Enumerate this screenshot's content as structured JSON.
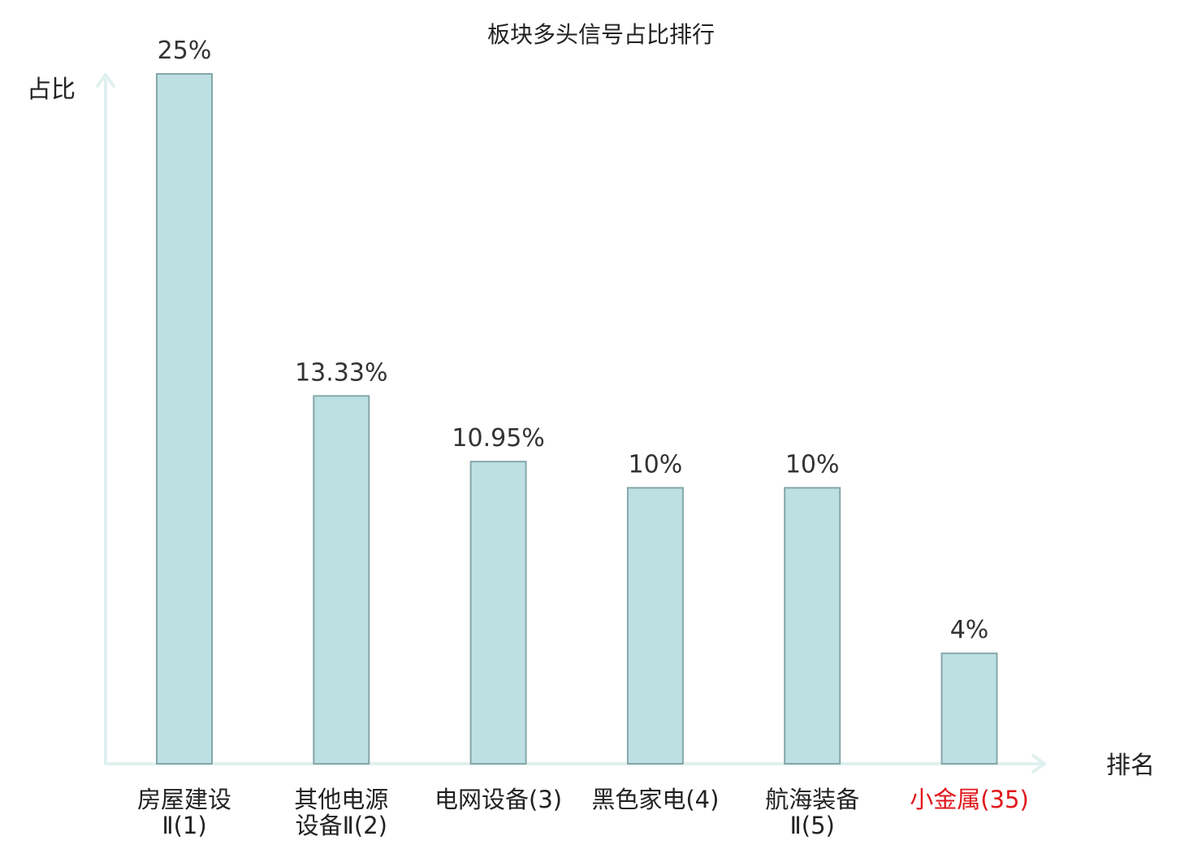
{
  "chart_data": {
    "type": "bar",
    "title": "板块多头信号占比排行",
    "ylabel": "占比",
    "xlabel": "排名",
    "categories": [
      [
        "房屋建设",
        "Ⅱ(1)"
      ],
      [
        "其他电源",
        "设备Ⅱ(2)"
      ],
      [
        "电网设备(3)"
      ],
      [
        "黑色家电(4)"
      ],
      [
        "航海装备",
        "Ⅱ(5)"
      ],
      [
        "小金属(35)"
      ]
    ],
    "values": [
      25,
      13.33,
      10.95,
      10,
      10,
      4
    ],
    "value_labels": [
      "25%",
      "13.33%",
      "10.95%",
      "10%",
      "10%",
      "4%"
    ],
    "highlight_category_index": 5,
    "highlight_color": "#e0161b",
    "bar_color": "#bde0e3",
    "bar_edge_color": "#86a7aa",
    "axis_color": "#dff1ee",
    "ylim": [
      0,
      25
    ],
    "grid": false
  }
}
